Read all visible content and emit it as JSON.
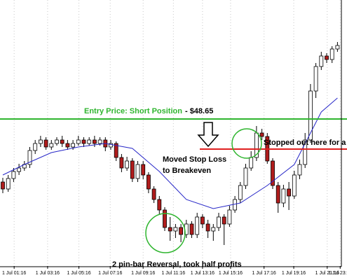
{
  "chart_data": {
    "type": "candlestick",
    "open": [
      48.2,
      48.15,
      48.225,
      48.275,
      48.3,
      48.325,
      48.425,
      48.475,
      48.5,
      48.45,
      48.475,
      48.5,
      48.475,
      48.45,
      48.475,
      48.5,
      48.475,
      48.5,
      48.475,
      48.5,
      48.45,
      48.475,
      48.375,
      48.3,
      48.35,
      48.225,
      48.325,
      48.25,
      48.15,
      48.075,
      48.0,
      47.875,
      47.85,
      47.875,
      47.825,
      47.9,
      47.825,
      47.95,
      47.9,
      47.85,
      47.875,
      47.95,
      47.9,
      48.0,
      48.075,
      48.175,
      48.3,
      48.375,
      48.55,
      48.525,
      48.35,
      48.175,
      48.05,
      48.15,
      48.1,
      48.25,
      48.325,
      48.5,
      48.85,
      49.025,
      49.1,
      49.075,
      49.15
    ],
    "high": [
      48.23,
      48.25,
      48.3,
      48.33,
      48.35,
      48.45,
      48.5,
      48.53,
      48.52,
      48.5,
      48.52,
      48.53,
      48.5,
      48.5,
      48.53,
      48.52,
      48.52,
      48.53,
      48.52,
      48.52,
      48.5,
      48.49,
      48.4,
      48.38,
      48.37,
      48.35,
      48.35,
      48.27,
      48.17,
      48.1,
      48.02,
      47.95,
      47.9,
      47.9,
      47.93,
      47.92,
      47.98,
      47.97,
      47.93,
      47.9,
      47.98,
      47.97,
      48.03,
      48.1,
      48.2,
      48.33,
      48.42,
      48.6,
      48.58,
      48.55,
      48.37,
      48.2,
      48.18,
      48.2,
      48.28,
      48.36,
      48.55,
      48.9,
      49.05,
      49.13,
      49.12,
      49.17,
      49.2
    ],
    "low": [
      48.12,
      48.13,
      48.2,
      48.25,
      48.28,
      48.3,
      48.4,
      48.45,
      48.43,
      48.43,
      48.46,
      48.45,
      48.43,
      48.43,
      48.46,
      48.45,
      48.46,
      48.45,
      48.46,
      48.42,
      48.43,
      48.35,
      48.27,
      48.28,
      48.2,
      48.2,
      48.22,
      48.12,
      48.05,
      47.97,
      47.85,
      47.78,
      47.8,
      47.77,
      47.8,
      47.8,
      47.8,
      47.87,
      47.8,
      47.78,
      47.85,
      47.75,
      47.88,
      47.98,
      48.05,
      48.15,
      48.28,
      48.35,
      48.5,
      48.33,
      48.15,
      47.98,
      48.02,
      48.0,
      48.08,
      48.22,
      48.3,
      48.48,
      48.8,
      49.0,
      49.05,
      49.05,
      49.13
    ],
    "close": [
      48.15,
      48.225,
      48.275,
      48.3,
      48.325,
      48.425,
      48.475,
      48.5,
      48.45,
      48.475,
      48.5,
      48.475,
      48.45,
      48.475,
      48.5,
      48.475,
      48.5,
      48.475,
      48.5,
      48.45,
      48.475,
      48.375,
      48.3,
      48.35,
      48.225,
      48.325,
      48.25,
      48.15,
      48.075,
      48.0,
      47.875,
      47.85,
      47.875,
      47.825,
      47.9,
      47.825,
      47.95,
      47.9,
      47.85,
      47.875,
      47.95,
      47.9,
      48.0,
      48.075,
      48.175,
      48.3,
      48.375,
      48.55,
      48.525,
      48.35,
      48.175,
      48.05,
      48.15,
      48.1,
      48.25,
      48.325,
      48.5,
      48.85,
      49.025,
      49.1,
      49.075,
      49.15,
      49.175
    ],
    "up_color": "#ffffff",
    "down_color": "#b01c1c",
    "ylim": [
      47.6,
      49.5
    ],
    "grid": true,
    "xticks": [
      {
        "value": 2.1,
        "label": "1 Jul 01:16"
      },
      {
        "value": 8.3,
        "label": "1 Jul 03:16"
      },
      {
        "value": 14.1,
        "label": "1 Jul 05:16"
      },
      {
        "value": 19.9,
        "label": "1 Jul 07:16"
      },
      {
        "value": 26.0,
        "label": "1 Jul 09:16"
      },
      {
        "value": 31.6,
        "label": "1 Jul 11:16"
      },
      {
        "value": 37.0,
        "label": "1 Jul 13:16"
      },
      {
        "value": 42.2,
        "label": "1 Jul 15:16"
      },
      {
        "value": 48.4,
        "label": "1 Jul 17:16"
      },
      {
        "value": 53.9,
        "label": "1 Jul 19:16"
      },
      {
        "value": 60.1,
        "label": "1 Jul 21:16"
      },
      {
        "value": 62.5,
        "label": "1 Jul 23:16"
      }
    ],
    "moving_average": {
      "color": "#2828c8",
      "index": [
        0,
        4,
        9,
        14,
        19,
        24,
        29,
        34,
        39,
        44,
        49,
        54,
        59,
        62
      ],
      "values": [
        48.25,
        48.325,
        48.41,
        48.45,
        48.475,
        48.44,
        48.275,
        48.075,
        48.01,
        48.05,
        48.175,
        48.325,
        48.7,
        48.8
      ]
    },
    "entry": {
      "label": "Entry Price: Short Position",
      "price_label": "- $48.65",
      "value": 48.65,
      "color": "#2fb52f"
    },
    "stop": {
      "value": 48.435,
      "color": "#e02020"
    },
    "annotations": [
      "Moved Stop Loss",
      "to Breakeven",
      "Stopped out here for a",
      "2 pin-bar Reversal, took half profits"
    ]
  }
}
